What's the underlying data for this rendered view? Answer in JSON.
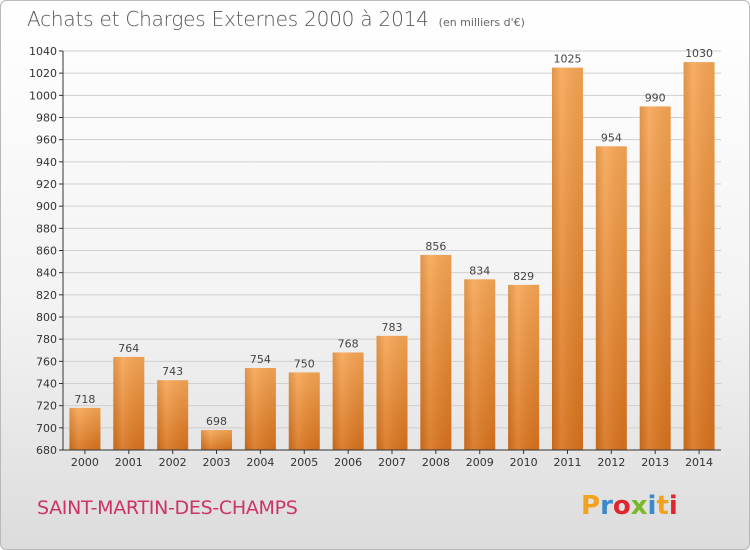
{
  "header": {
    "title": "Achats et Charges Externes 2000 à 2014",
    "unit": "(en milliers d'€)"
  },
  "footer": {
    "commune": "SAINT-MARTIN-DES-CHAMPS",
    "logo_text": "Proxiti",
    "logo_colors": [
      "#f2a21c",
      "#3a89c9",
      "#e0262d",
      "#79b928",
      "#3a89c9",
      "#f2a21c",
      "#e0262d"
    ]
  },
  "colors": {
    "bar": "#f2953f",
    "bar_dark": "#d8721c",
    "grid": "#cfcfcf",
    "axis": "#333333"
  },
  "chart_data": {
    "type": "bar",
    "title": "Achats et Charges Externes 2000 à 2014",
    "subtitle": "(en milliers d'€)",
    "categories": [
      "2000",
      "2001",
      "2002",
      "2003",
      "2004",
      "2005",
      "2006",
      "2007",
      "2008",
      "2009",
      "2010",
      "2011",
      "2012",
      "2013",
      "2014"
    ],
    "values": [
      718,
      764,
      743,
      698,
      754,
      750,
      768,
      783,
      856,
      834,
      829,
      1025,
      954,
      990,
      1030
    ],
    "ylim": [
      680,
      1040
    ],
    "yticks": [
      680,
      700,
      720,
      740,
      760,
      780,
      800,
      820,
      840,
      860,
      880,
      900,
      920,
      940,
      960,
      980,
      1000,
      1020,
      1040
    ],
    "grid": true,
    "data_labels": true,
    "legend": "none"
  }
}
